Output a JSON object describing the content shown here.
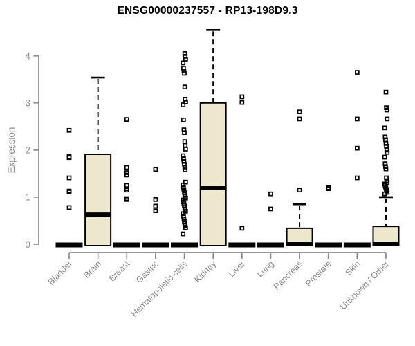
{
  "page": {
    "background": "#ffffff"
  },
  "chart_data": {
    "type": "boxplot",
    "title": "ENSG00000237557 - RP13-198D9.3",
    "ylabel": "Expression",
    "xlabel": "",
    "ylim": [
      0,
      4.6
    ],
    "yticks": [
      0,
      1,
      2,
      3,
      4
    ],
    "grid": false,
    "legend": null,
    "categories": [
      "Bladder",
      "Brain",
      "Breast",
      "Gastric",
      "Hematopoietic cells",
      "Kidney",
      "Liver",
      "Lung",
      "Pancreas",
      "Prostate",
      "Skin",
      "Unknown / Other"
    ],
    "boxes": [
      {
        "category": "Bladder",
        "median": 0,
        "q1": 0,
        "q3": 0,
        "whisker_low": 0,
        "whisker_high": 0,
        "outliers": [
          0.78,
          1.11,
          1.13,
          1.41,
          1.84,
          1.86,
          2.42
        ]
      },
      {
        "category": "Brain",
        "median": 0.63,
        "q1": 0,
        "q3": 1.91,
        "whisker_low": 0,
        "whisker_high": 3.54,
        "outliers": []
      },
      {
        "category": "Breast",
        "median": 0,
        "q1": 0,
        "q3": 0,
        "whisker_low": 0,
        "whisker_high": 0,
        "outliers": [
          0.95,
          0.97,
          1.15,
          1.18,
          1.25,
          1.47,
          1.52,
          1.63,
          2.65
        ]
      },
      {
        "category": "Gastric",
        "median": 0,
        "q1": 0,
        "q3": 0,
        "whisker_low": 0,
        "whisker_high": 0,
        "outliers": [
          0.71,
          0.81,
          0.95,
          1.59
        ]
      },
      {
        "category": "Hematopoietic cells",
        "median": 0,
        "q1": 0,
        "q3": 0,
        "whisker_low": 0,
        "whisker_high": 0,
        "outliers": [
          0.22,
          0.35,
          0.4,
          0.44,
          0.48,
          0.53,
          0.6,
          0.65,
          0.7,
          0.74,
          0.78,
          0.82,
          0.86,
          0.9,
          0.94,
          0.98,
          1.02,
          1.06,
          1.1,
          1.15,
          1.2,
          1.26,
          1.32,
          1.58,
          1.64,
          1.7,
          1.76,
          1.82,
          1.88,
          2.02,
          2.1,
          2.18,
          2.37,
          2.43,
          2.64,
          2.96,
          3.02,
          3.08,
          3.34,
          3.63,
          3.68,
          3.74,
          3.85,
          3.93,
          3.99,
          4.05
        ]
      },
      {
        "category": "Kidney",
        "median": 1.19,
        "q1": 0,
        "q3": 3.0,
        "whisker_low": 0,
        "whisker_high": 4.55,
        "outliers": []
      },
      {
        "category": "Liver",
        "median": 0,
        "q1": 0,
        "q3": 0,
        "whisker_low": 0,
        "whisker_high": 0,
        "outliers": [
          0.34,
          3.01,
          3.13
        ]
      },
      {
        "category": "Lung",
        "median": 0,
        "q1": 0,
        "q3": 0,
        "whisker_low": 0,
        "whisker_high": 0,
        "outliers": [
          0.75,
          1.07
        ]
      },
      {
        "category": "Pancreas",
        "median": 0,
        "q1": 0,
        "q3": 0.34,
        "whisker_low": 0,
        "whisker_high": 0.85,
        "outliers": [
          1.15,
          2.66,
          2.81
        ]
      },
      {
        "category": "Prostate",
        "median": 0,
        "q1": 0,
        "q3": 0,
        "whisker_low": 0,
        "whisker_high": 0,
        "outliers": [
          1.18,
          1.2
        ]
      },
      {
        "category": "Skin",
        "median": 0,
        "q1": 0,
        "q3": 0,
        "whisker_low": 0,
        "whisker_high": 0,
        "outliers": [
          1.41,
          2.04,
          2.66,
          3.65
        ]
      },
      {
        "category": "Unknown / Other",
        "median": 0,
        "q1": 0,
        "q3": 0.38,
        "whisker_low": 0,
        "whisker_high": 1.0,
        "outliers": [
          1.07,
          1.1,
          1.13,
          1.16,
          1.19,
          1.22,
          1.25,
          1.28,
          1.31,
          1.35,
          1.41,
          1.6,
          1.65,
          1.71,
          1.85,
          1.95,
          2.0,
          2.08,
          2.14,
          2.22,
          2.28,
          2.47,
          2.66,
          2.85,
          2.9,
          3.23
        ]
      }
    ],
    "colors": {
      "box_fill": "#ede7cd",
      "box_border": "#000000",
      "median": "#000000",
      "outlier": "#000000",
      "whisker": "#000000",
      "axis": "#8c8c8c",
      "tick_label": "#8c8c8c",
      "title": "#000000",
      "background": "#ffffff"
    }
  }
}
